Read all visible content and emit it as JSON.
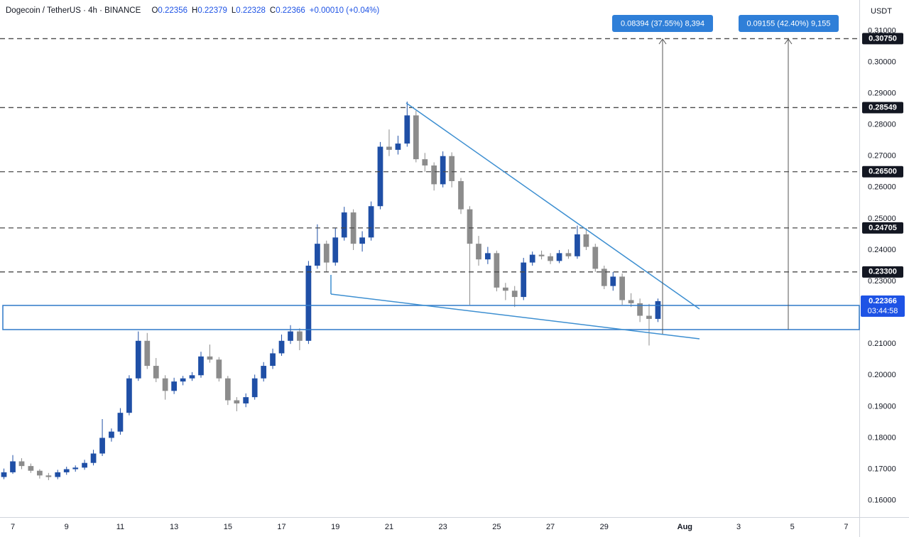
{
  "chart_data": {
    "type": "candlestick",
    "header": {
      "symbol": "Dogecoin / TetherUS · 4h · BINANCE",
      "ohlc": [
        {
          "key": "O",
          "value": "0.22356"
        },
        {
          "key": "H",
          "value": "0.22379"
        },
        {
          "key": "L",
          "value": "0.22328"
        },
        {
          "key": "C",
          "value": "0.22366"
        }
      ],
      "change": "+0.00010 (+0.04%)"
    },
    "currency": "USDT",
    "up_color": "#1f4fa6",
    "down_color": "#8c8c8c",
    "x": [
      6.67,
      7,
      7.33,
      7.67,
      8,
      8.33,
      8.67,
      9,
      9.33,
      9.67,
      10,
      10.33,
      10.67,
      11,
      11.33,
      11.67,
      12,
      12.33,
      12.67,
      13,
      13.33,
      13.67,
      14,
      14.33,
      14.67,
      15,
      15.33,
      15.67,
      16,
      16.33,
      16.67,
      17,
      17.33,
      17.67,
      18,
      18.33,
      18.67,
      19,
      19.33,
      19.67,
      20,
      20.33,
      20.67,
      21,
      21.33,
      21.67,
      22,
      22.33,
      22.67,
      23,
      23.33,
      23.67,
      24,
      24.33,
      24.67,
      25,
      25.33,
      25.67,
      26,
      26.33,
      26.67,
      27,
      27.33,
      27.67,
      28,
      28.33,
      28.67,
      29,
      29.33,
      29.67,
      30,
      30.33,
      30.67,
      31
    ],
    "candles": [
      [
        0.1675,
        0.1702,
        0.1668,
        0.169
      ],
      [
        0.169,
        0.1745,
        0.1685,
        0.1725
      ],
      [
        0.1725,
        0.1735,
        0.17,
        0.171
      ],
      [
        0.171,
        0.1718,
        0.1688,
        0.1695
      ],
      [
        0.1695,
        0.17,
        0.167,
        0.168
      ],
      [
        0.168,
        0.1688,
        0.1665,
        0.1675
      ],
      [
        0.1675,
        0.1698,
        0.1668,
        0.169
      ],
      [
        0.169,
        0.1708,
        0.1682,
        0.17
      ],
      [
        0.17,
        0.1712,
        0.1692,
        0.1705
      ],
      [
        0.1705,
        0.173,
        0.1698,
        0.172
      ],
      [
        0.172,
        0.1762,
        0.1712,
        0.175
      ],
      [
        0.175,
        0.186,
        0.1742,
        0.18
      ],
      [
        0.18,
        0.183,
        0.1788,
        0.182
      ],
      [
        0.182,
        0.1895,
        0.181,
        0.188
      ],
      [
        0.188,
        0.2,
        0.1872,
        0.199
      ],
      [
        0.199,
        0.214,
        0.1982,
        0.211
      ],
      [
        0.211,
        0.2135,
        0.202,
        0.203
      ],
      [
        0.203,
        0.2055,
        0.1978,
        0.199
      ],
      [
        0.199,
        0.2,
        0.1922,
        0.195
      ],
      [
        0.195,
        0.1992,
        0.194,
        0.198
      ],
      [
        0.198,
        0.1998,
        0.1968,
        0.199
      ],
      [
        0.199,
        0.201,
        0.1982,
        0.2
      ],
      [
        0.2,
        0.2075,
        0.1992,
        0.206
      ],
      [
        0.206,
        0.2098,
        0.204,
        0.205
      ],
      [
        0.205,
        0.2058,
        0.198,
        0.199
      ],
      [
        0.199,
        0.1998,
        0.1905,
        0.192
      ],
      [
        0.192,
        0.193,
        0.1885,
        0.191
      ],
      [
        0.191,
        0.1942,
        0.1898,
        0.193
      ],
      [
        0.193,
        0.2002,
        0.1922,
        0.199
      ],
      [
        0.199,
        0.2042,
        0.198,
        0.203
      ],
      [
        0.203,
        0.2085,
        0.202,
        0.207
      ],
      [
        0.207,
        0.213,
        0.2062,
        0.211
      ],
      [
        0.211,
        0.216,
        0.21,
        0.214
      ],
      [
        0.214,
        0.215,
        0.208,
        0.211
      ],
      [
        0.211,
        0.2365,
        0.21,
        0.235
      ],
      [
        0.235,
        0.2482,
        0.234,
        0.242
      ],
      [
        0.242,
        0.243,
        0.233,
        0.236
      ],
      [
        0.236,
        0.247,
        0.235,
        0.244
      ],
      [
        0.244,
        0.2538,
        0.243,
        0.252
      ],
      [
        0.252,
        0.253,
        0.24,
        0.242
      ],
      [
        0.242,
        0.246,
        0.2395,
        0.244
      ],
      [
        0.244,
        0.2555,
        0.243,
        0.254
      ],
      [
        0.254,
        0.2745,
        0.253,
        0.273
      ],
      [
        0.273,
        0.2785,
        0.27,
        0.272
      ],
      [
        0.272,
        0.2765,
        0.2705,
        0.274
      ],
      [
        0.274,
        0.2874,
        0.273,
        0.283
      ],
      [
        0.283,
        0.2845,
        0.268,
        0.269
      ],
      [
        0.269,
        0.271,
        0.265,
        0.267
      ],
      [
        0.267,
        0.268,
        0.259,
        0.261
      ],
      [
        0.261,
        0.2715,
        0.26,
        0.27
      ],
      [
        0.27,
        0.2712,
        0.26,
        0.262
      ],
      [
        0.262,
        0.263,
        0.2515,
        0.253
      ],
      [
        0.253,
        0.254,
        0.2225,
        0.242
      ],
      [
        0.242,
        0.2445,
        0.235,
        0.237
      ],
      [
        0.237,
        0.241,
        0.2355,
        0.239
      ],
      [
        0.239,
        0.2398,
        0.2268,
        0.228
      ],
      [
        0.228,
        0.2295,
        0.224,
        0.227
      ],
      [
        0.227,
        0.2285,
        0.2218,
        0.225
      ],
      [
        0.225,
        0.2375,
        0.224,
        0.236
      ],
      [
        0.236,
        0.2395,
        0.235,
        0.2385
      ],
      [
        0.2385,
        0.2398,
        0.237,
        0.238
      ],
      [
        0.238,
        0.239,
        0.2355,
        0.2365
      ],
      [
        0.2365,
        0.24,
        0.2358,
        0.239
      ],
      [
        0.239,
        0.2402,
        0.2372,
        0.238
      ],
      [
        0.238,
        0.2478,
        0.2372,
        0.245
      ],
      [
        0.245,
        0.247,
        0.24,
        0.241
      ],
      [
        0.241,
        0.242,
        0.233,
        0.234
      ],
      [
        0.234,
        0.235,
        0.2275,
        0.2285
      ],
      [
        0.2285,
        0.233,
        0.227,
        0.2315
      ],
      [
        0.2315,
        0.2325,
        0.2225,
        0.224
      ],
      [
        0.224,
        0.2262,
        0.2218,
        0.223
      ],
      [
        0.223,
        0.2245,
        0.217,
        0.219
      ],
      [
        0.219,
        0.2228,
        0.2095,
        0.218
      ],
      [
        0.218,
        0.2245,
        0.217,
        0.22366
      ]
    ],
    "xlim": [
      6.524,
      38.49
    ],
    "ylim": [
      0.15469,
      0.31985
    ],
    "xticks": [
      7,
      9,
      11,
      13,
      15,
      17,
      19,
      21,
      23,
      25,
      27,
      29,
      {
        "value": 32,
        "label": "Aug"
      },
      {
        "value": 34,
        "label": "3"
      },
      {
        "value": 36,
        "label": "5"
      },
      {
        "value": 38,
        "label": "7"
      }
    ],
    "yticks": [
      {
        "value": 0.31,
        "label": "0.31000"
      },
      {
        "value": 0.3,
        "label": "0.30000"
      },
      {
        "value": 0.29,
        "label": "0.29000"
      },
      {
        "value": 0.28,
        "label": "0.28000"
      },
      {
        "value": 0.27,
        "label": "0.27000"
      },
      {
        "value": 0.26,
        "label": "0.26000"
      },
      {
        "value": 0.25,
        "label": "0.25000"
      },
      {
        "value": 0.24,
        "label": "0.24000"
      },
      {
        "value": 0.23,
        "label": "0.23000"
      },
      {
        "value": 0.21,
        "label": "0.21000"
      },
      {
        "value": 0.2,
        "label": "0.20000"
      },
      {
        "value": 0.19,
        "label": "0.19000"
      },
      {
        "value": 0.18,
        "label": "0.18000"
      },
      {
        "value": 0.17,
        "label": "0.17000"
      },
      {
        "value": 0.16,
        "label": "0.16000"
      }
    ],
    "levels": [
      {
        "value": 0.3075,
        "label": "0.30750"
      },
      {
        "value": 0.28549,
        "label": "0.28549"
      },
      {
        "value": 0.265,
        "label": "0.26500"
      },
      {
        "value": 0.24705,
        "label": "0.24705"
      },
      {
        "value": 0.233,
        "label": "0.23300"
      }
    ],
    "last_price": {
      "value": 0.22366,
      "label": "0.22366",
      "countdown": "03:44:58"
    },
    "measurements": [
      "0.08394 (37.55%) 8,394",
      "0.09155 (42.40%) 9,155"
    ]
  }
}
